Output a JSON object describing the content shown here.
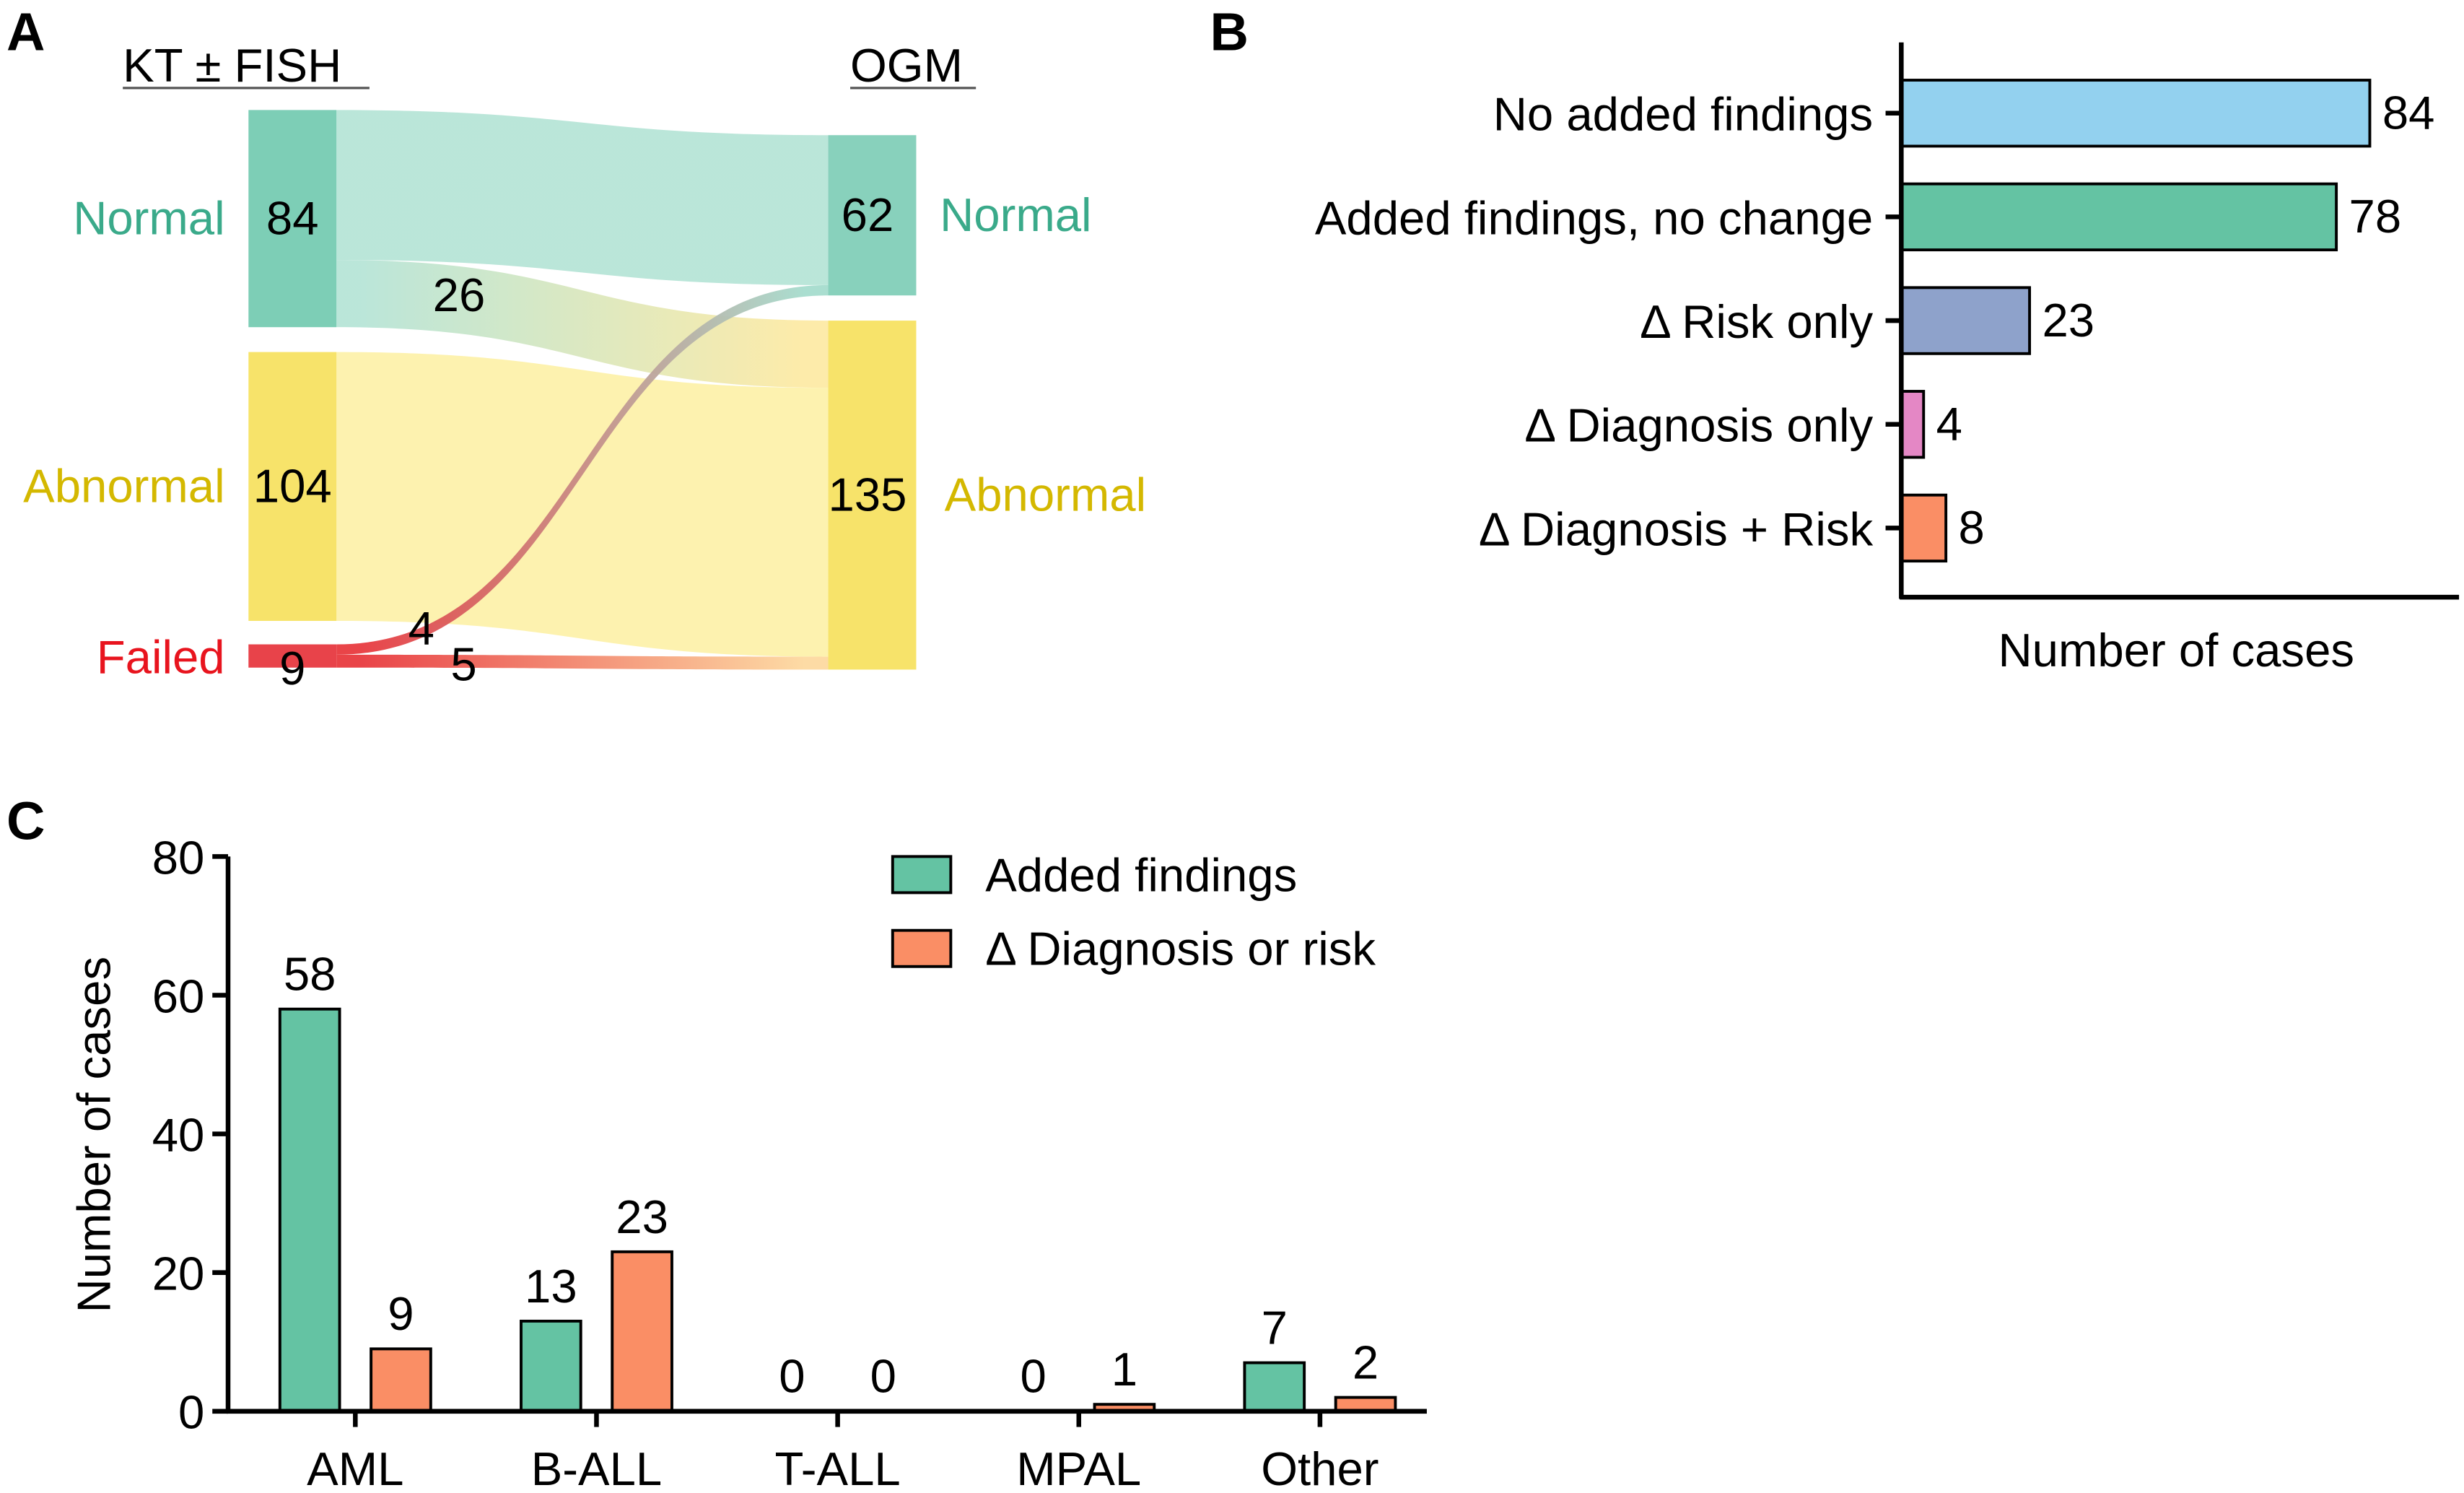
{
  "chart_data": [
    {
      "panel": "A",
      "type": "sankey",
      "left_header": "KT ± FISH",
      "right_header": "OGM",
      "left_nodes": [
        {
          "id": "kt_normal",
          "label": "Normal",
          "value": 84,
          "color": "#7dceb6",
          "label_color": "#3aaa8a"
        },
        {
          "id": "kt_abnormal",
          "label": "Abnormal",
          "value": 104,
          "color": "#f7e36a",
          "label_color": "#d4b800"
        },
        {
          "id": "kt_failed",
          "label": "Failed",
          "value": 9,
          "color": "#e8434a",
          "label_color": "#e8141e"
        }
      ],
      "right_nodes": [
        {
          "id": "ogm_normal",
          "label": "Normal",
          "value": 62,
          "color": "#88d1bc",
          "label_color": "#3aaa8a"
        },
        {
          "id": "ogm_abnormal",
          "label": "Abnormal",
          "value": 135,
          "color": "#f7e36a",
          "label_color": "#d4b800"
        }
      ],
      "flows": [
        {
          "from": "kt_normal",
          "to": "ogm_normal",
          "value": 58,
          "label": ""
        },
        {
          "from": "kt_normal",
          "to": "ogm_abnormal",
          "value": 26,
          "label": "26"
        },
        {
          "from": "kt_abnormal",
          "to": "ogm_abnormal",
          "value": 104,
          "label": ""
        },
        {
          "from": "kt_failed",
          "to": "ogm_normal",
          "value": 4,
          "label": "4"
        },
        {
          "from": "kt_failed",
          "to": "ogm_abnormal",
          "value": 5,
          "label": "5"
        }
      ]
    },
    {
      "panel": "B",
      "type": "bar",
      "orientation": "horizontal",
      "categories": [
        "No added findings",
        "Added findings, no change",
        "Δ Risk only",
        "Δ Diagnosis only",
        "Δ Diagnosis + Risk"
      ],
      "values": [
        84,
        78,
        23,
        4,
        8
      ],
      "colors": [
        "#93d1ef",
        "#64c3a3",
        "#8ea2cb",
        "#e487c5",
        "#fa8e65"
      ],
      "xlabel": "Number of cases",
      "ylabel": "",
      "xlim": [
        0,
        100
      ]
    },
    {
      "panel": "C",
      "type": "bar",
      "categories": [
        "AML",
        "B-ALL",
        "T-ALL",
        "MPAL",
        "Other"
      ],
      "series": [
        {
          "name": "Added findings",
          "values": [
            58,
            13,
            0,
            0,
            7
          ],
          "color": "#64c3a3"
        },
        {
          "name": "Δ Diagnosis or risk",
          "values": [
            9,
            23,
            0,
            1,
            2
          ],
          "color": "#fa8e65"
        }
      ],
      "xlabel": "",
      "ylabel": "Number of cases",
      "ylim": [
        0,
        80
      ],
      "yticks": [
        0,
        20,
        40,
        60,
        80
      ],
      "legend": "top-right"
    }
  ],
  "panel_letters": [
    "A",
    "B",
    "C"
  ]
}
